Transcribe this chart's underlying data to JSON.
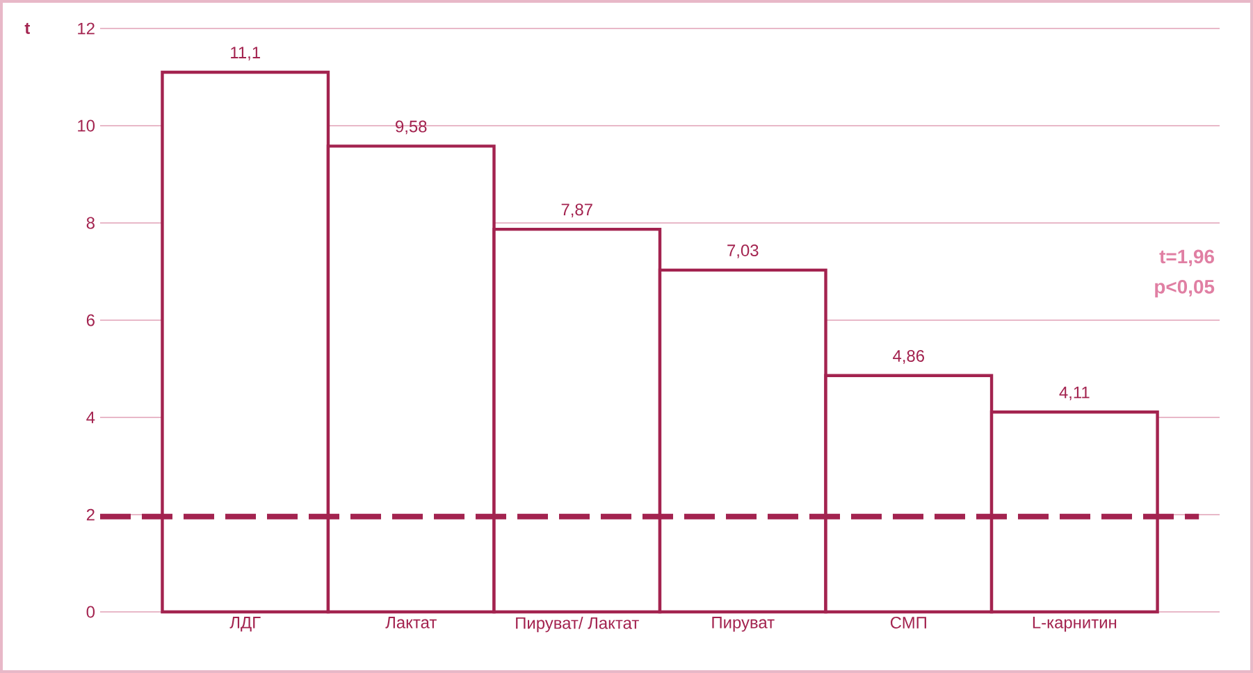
{
  "chart_data": {
    "type": "bar",
    "ylabel": "t",
    "categories": [
      "ЛДГ",
      "Лактат",
      "Пируват/ Лактат",
      "Пируват",
      "СМП",
      "L-карнитин"
    ],
    "values": [
      11.1,
      9.58,
      7.87,
      7.03,
      4.86,
      4.11
    ],
    "value_labels": [
      "11,1",
      "9,58",
      "7,87",
      "7,03",
      "4,86",
      "4,11"
    ],
    "color": "#a3234f",
    "ylim": [
      0,
      12
    ],
    "yticks": [
      0,
      2,
      4,
      6,
      8,
      10,
      12
    ],
    "grid": "y",
    "ref_lines": [
      {
        "axis": "y",
        "value": 1.96,
        "color": "#a3234f",
        "line_style": "dashed"
      }
    ],
    "annotations": [
      "t=1,96",
      "p<0,05"
    ]
  }
}
